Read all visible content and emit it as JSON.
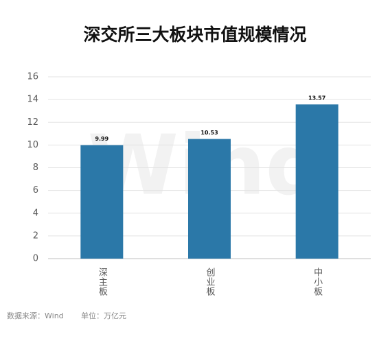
{
  "chart_data": {
    "type": "bar",
    "title": "深交所三大板块市值规模情况",
    "categories": [
      "深主板",
      "创业板",
      "中小板"
    ],
    "values": [
      9.99,
      10.53,
      13.57
    ],
    "color": "#2b78a8",
    "ylim": [
      0,
      16
    ],
    "yticks": [
      0,
      2,
      4,
      6,
      8,
      10,
      12,
      14,
      16
    ],
    "grid": true,
    "watermark": "Wind",
    "source": "数据来源：Wind",
    "unit": "单位：万亿元"
  }
}
